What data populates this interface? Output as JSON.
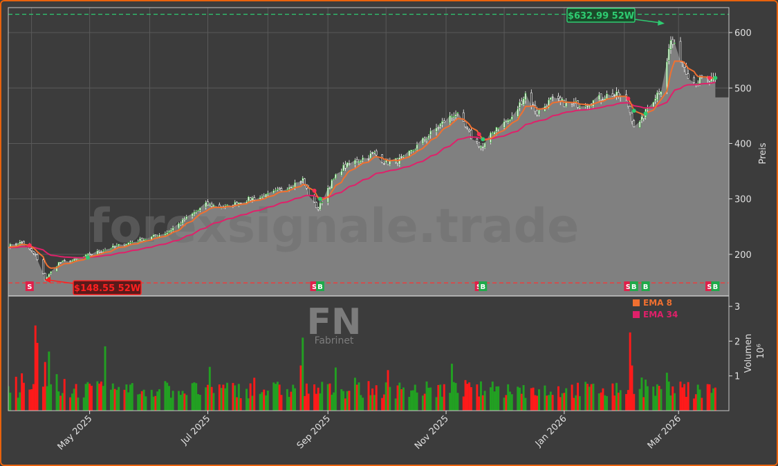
{
  "watermark": "forexsignale.trade",
  "ticker": {
    "symbol": "FN",
    "source": "Fabrinet"
  },
  "price_axis": {
    "label": "Preis",
    "ticks": [
      "200",
      "300",
      "400",
      "500",
      "600"
    ]
  },
  "volume_axis": {
    "label": "Volumen",
    "exponent": "10⁶",
    "ticks": [
      "1",
      "2",
      "3"
    ]
  },
  "x_axis": {
    "ticks": [
      "May 2025",
      "Jul 2025",
      "Sep 2025",
      "Nov 2025",
      "Jan 2026",
      "Mar 2026"
    ]
  },
  "legend": [
    {
      "label": "EMA 8",
      "color": "#f07030"
    },
    {
      "label": "EMA 34",
      "color": "#e0206a"
    }
  ],
  "annotations": {
    "high": {
      "text": "$632.99 52W",
      "value": 632.99
    },
    "low": {
      "text": "$148.55 52W",
      "value": 148.55
    }
  },
  "chart_data": {
    "type": "candlestick",
    "ylim_price": [
      125,
      645
    ],
    "ylim_volume": [
      0,
      3.3
    ],
    "x_range": [
      "2025-03-20",
      "2026-03-27"
    ],
    "colors": {
      "up": "#22a022",
      "down": "#ff1a1a",
      "area": "#808080",
      "ema8": "#f07030",
      "ema34": "#e0206a"
    },
    "price_anchors": [
      [
        "2025-03-20",
        215
      ],
      [
        "2025-03-27",
        222
      ],
      [
        "2025-04-03",
        198
      ],
      [
        "2025-04-08",
        155
      ],
      [
        "2025-04-15",
        185
      ],
      [
        "2025-04-24",
        190
      ],
      [
        "2025-05-01",
        200
      ],
      [
        "2025-05-10",
        210
      ],
      [
        "2025-05-20",
        220
      ],
      [
        "2025-06-01",
        230
      ],
      [
        "2025-06-10",
        240
      ],
      [
        "2025-06-20",
        265
      ],
      [
        "2025-06-30",
        290
      ],
      [
        "2025-07-10",
        285
      ],
      [
        "2025-07-20",
        298
      ],
      [
        "2025-07-31",
        305
      ],
      [
        "2025-08-10",
        320
      ],
      [
        "2025-08-19",
        335
      ],
      [
        "2025-08-23",
        300
      ],
      [
        "2025-08-27",
        282
      ],
      [
        "2025-09-01",
        320
      ],
      [
        "2025-09-08",
        355
      ],
      [
        "2025-09-15",
        368
      ],
      [
        "2025-09-25",
        382
      ],
      [
        "2025-10-01",
        365
      ],
      [
        "2025-10-10",
        372
      ],
      [
        "2025-10-20",
        405
      ],
      [
        "2025-10-31",
        440
      ],
      [
        "2025-11-06",
        455
      ],
      [
        "2025-11-14",
        412
      ],
      [
        "2025-11-20",
        392
      ],
      [
        "2025-11-27",
        430
      ],
      [
        "2025-12-05",
        445
      ],
      [
        "2025-12-12",
        490
      ],
      [
        "2025-12-18",
        455
      ],
      [
        "2025-12-25",
        478
      ],
      [
        "2026-01-05",
        470
      ],
      [
        "2026-01-15",
        475
      ],
      [
        "2026-01-25",
        490
      ],
      [
        "2026-02-02",
        480
      ],
      [
        "2026-02-07",
        422
      ],
      [
        "2026-02-14",
        470
      ],
      [
        "2026-02-20",
        500
      ],
      [
        "2026-02-25",
        585
      ],
      [
        "2026-03-02",
        555
      ],
      [
        "2026-03-08",
        510
      ],
      [
        "2026-03-14",
        515
      ],
      [
        "2026-03-20",
        512
      ]
    ],
    "volume_spikes": [
      [
        "2025-04-03",
        2.45
      ],
      [
        "2025-04-04",
        1.95
      ],
      [
        "2025-04-08",
        1.4
      ],
      [
        "2025-04-10",
        1.7
      ],
      [
        "2025-05-09",
        1.85
      ],
      [
        "2025-08-19",
        2.1
      ],
      [
        "2025-08-18",
        1.3
      ],
      [
        "2025-11-04",
        1.35
      ],
      [
        "2026-02-04",
        2.25
      ],
      [
        "2026-02-05",
        1.3
      ]
    ],
    "signals": [
      {
        "type": "S",
        "date": "2025-03-31"
      },
      {
        "type": "B",
        "date": "2025-04-30"
      },
      {
        "type": "S",
        "date": "2025-08-25"
      },
      {
        "type": "B",
        "date": "2025-08-28"
      },
      {
        "type": "S",
        "date": "2025-11-18"
      },
      {
        "type": "B",
        "date": "2025-11-20"
      },
      {
        "type": "S",
        "date": "2026-02-03"
      },
      {
        "type": "B",
        "date": "2026-02-06"
      },
      {
        "type": "B",
        "date": "2026-02-12"
      },
      {
        "type": "S",
        "date": "2026-03-17"
      },
      {
        "type": "B",
        "date": "2026-03-20"
      }
    ],
    "last_close": 483
  }
}
